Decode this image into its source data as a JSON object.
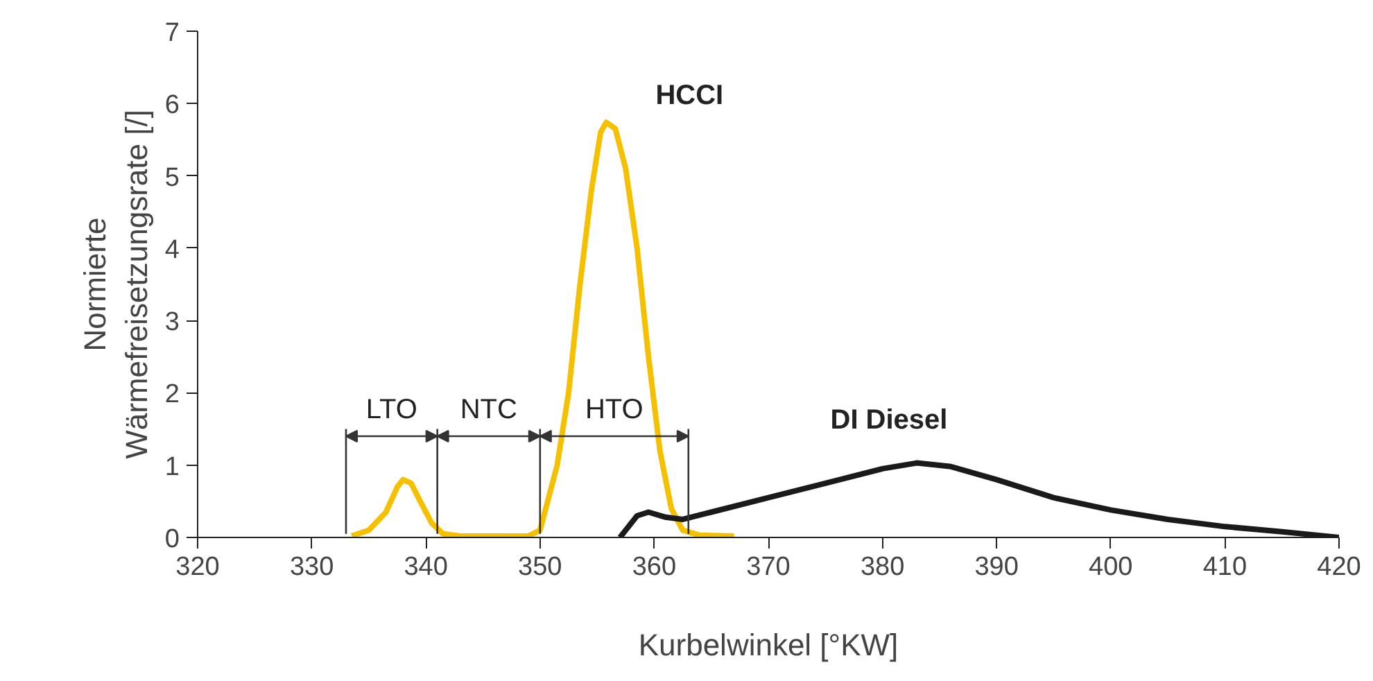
{
  "chart_data": {
    "type": "line",
    "xlabel": "Kurbelwinkel [°KW]",
    "ylabel": "Normierte\nWärmefreisetzungsrate [/]",
    "xlim": [
      320,
      420
    ],
    "ylim": [
      0,
      7
    ],
    "xticks": [
      320,
      330,
      340,
      350,
      360,
      370,
      380,
      390,
      400,
      410,
      420
    ],
    "yticks": [
      0,
      1,
      2,
      3,
      4,
      5,
      6,
      7
    ],
    "grid": false,
    "marker": "none",
    "line_style": "solid",
    "series": [
      {
        "name": "HCCI",
        "color": "#f5c000",
        "x": [
          333.5,
          335,
          336.5,
          337.5,
          338,
          338.7,
          339.5,
          340.5,
          341.5,
          343,
          349,
          350,
          350.5,
          351.5,
          352.5,
          353.5,
          354.5,
          355.3,
          355.8,
          356.6,
          357.5,
          358.5,
          359.5,
          360.5,
          361.5,
          362.5,
          364,
          367
        ],
        "values": [
          0.02,
          0.1,
          0.35,
          0.7,
          0.8,
          0.75,
          0.5,
          0.2,
          0.05,
          0.02,
          0.02,
          0.1,
          0.4,
          1.0,
          2.0,
          3.5,
          4.8,
          5.6,
          5.74,
          5.65,
          5.1,
          4.0,
          2.5,
          1.2,
          0.4,
          0.1,
          0.03,
          0.02
        ]
      },
      {
        "name": "DI Diesel",
        "color": "#1a1a1a",
        "x": [
          357,
          358.5,
          359.5,
          361,
          362.5,
          365,
          370,
          375,
          380,
          383,
          386,
          390,
          395,
          400,
          405,
          410,
          415,
          420
        ],
        "values": [
          0,
          0.3,
          0.35,
          0.28,
          0.25,
          0.35,
          0.55,
          0.75,
          0.95,
          1.03,
          0.98,
          0.8,
          0.55,
          0.38,
          0.25,
          0.15,
          0.08,
          0
        ]
      }
    ],
    "ref_lines": [
      {
        "axis": "x",
        "value": 333
      },
      {
        "axis": "x",
        "value": 341
      },
      {
        "axis": "x",
        "value": 350
      },
      {
        "axis": "x",
        "value": 363
      }
    ],
    "annotations": [
      {
        "text": "LTO",
        "x": 341,
        "y": 1.4
      },
      {
        "text": "NTC",
        "x": 350,
        "y": 1.4
      },
      {
        "text": "HTO",
        "x": 363,
        "y": 1.4
      }
    ]
  }
}
